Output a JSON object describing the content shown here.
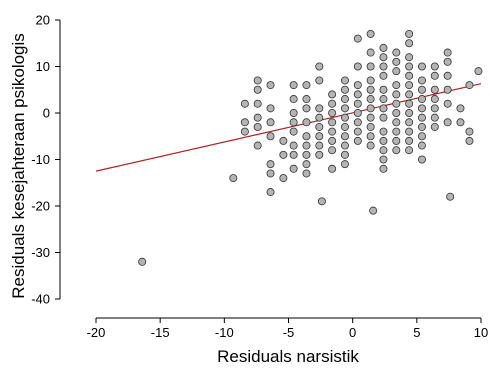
{
  "chart_data": {
    "type": "scatter",
    "xlabel": "Residuals narsistik",
    "ylabel": "Residuals kesejahteraan psikologis",
    "xlim": [
      -20,
      10
    ],
    "ylim": [
      -40,
      20
    ],
    "xticks": [
      -20,
      -15,
      -10,
      -5,
      0,
      5,
      10
    ],
    "yticks": [
      -40,
      -30,
      -20,
      -10,
      0,
      10,
      20
    ],
    "xtick_labels": [
      "-20",
      "-15",
      "-10",
      "-5",
      "0",
      "5",
      "10"
    ],
    "ytick_labels": [
      "-40",
      "-30",
      "-20",
      "-10",
      "0",
      "10",
      "20"
    ],
    "grid": false,
    "point_color": "#b4b4b4",
    "point_edge_color": "#333333",
    "line_color": "#b22222",
    "regression_line": {
      "x": [
        -20,
        10
      ],
      "y": [
        -12.5,
        6.3
      ]
    },
    "points": [
      [
        -16.4,
        -32
      ],
      [
        -9.3,
        -14
      ],
      [
        -6.4,
        -17
      ],
      [
        -2.4,
        -19
      ],
      [
        1.6,
        -21
      ],
      [
        7.6,
        -18
      ],
      [
        -8.4,
        2
      ],
      [
        -8.4,
        -2
      ],
      [
        -8.4,
        -4
      ],
      [
        -7.4,
        7
      ],
      [
        -7.4,
        5
      ],
      [
        -7.4,
        2
      ],
      [
        -7.4,
        -1
      ],
      [
        -7.4,
        -3
      ],
      [
        -7.4,
        -7
      ],
      [
        -6.4,
        6
      ],
      [
        -6.4,
        1
      ],
      [
        -6.4,
        -2
      ],
      [
        -6.4,
        -5
      ],
      [
        -6.4,
        -11
      ],
      [
        -6.4,
        -13
      ],
      [
        -5.4,
        -6
      ],
      [
        -5.4,
        -9
      ],
      [
        -5.4,
        -14
      ],
      [
        -4.6,
        6
      ],
      [
        -4.6,
        3
      ],
      [
        -4.6,
        0
      ],
      [
        -4.6,
        -2
      ],
      [
        -4.6,
        -4
      ],
      [
        -4.6,
        -7
      ],
      [
        -4.6,
        -9
      ],
      [
        -4.6,
        -12
      ],
      [
        -3.6,
        6
      ],
      [
        -3.6,
        3
      ],
      [
        -3.6,
        1
      ],
      [
        -3.6,
        -2
      ],
      [
        -3.6,
        -5
      ],
      [
        -3.6,
        -7
      ],
      [
        -3.6,
        -9
      ],
      [
        -3.6,
        -11
      ],
      [
        -3.6,
        -13
      ],
      [
        -2.6,
        10
      ],
      [
        -2.6,
        7
      ],
      [
        -2.6,
        1
      ],
      [
        -2.6,
        -1
      ],
      [
        -2.6,
        -3
      ],
      [
        -2.6,
        -5
      ],
      [
        -2.6,
        -7
      ],
      [
        -2.6,
        -9
      ],
      [
        -1.6,
        4
      ],
      [
        -1.6,
        2
      ],
      [
        -1.6,
        0
      ],
      [
        -1.6,
        -2
      ],
      [
        -1.6,
        -4
      ],
      [
        -1.6,
        -6
      ],
      [
        -1.6,
        -8
      ],
      [
        -1.6,
        -12
      ],
      [
        -0.6,
        7
      ],
      [
        -0.6,
        5
      ],
      [
        -0.6,
        3
      ],
      [
        -0.6,
        1
      ],
      [
        -0.6,
        -1
      ],
      [
        -0.6,
        -3
      ],
      [
        -0.6,
        -5
      ],
      [
        -0.6,
        -7
      ],
      [
        -0.6,
        -9
      ],
      [
        -0.6,
        -11
      ],
      [
        0.4,
        16
      ],
      [
        0.4,
        10
      ],
      [
        0.4,
        6
      ],
      [
        0.4,
        4
      ],
      [
        0.4,
        2
      ],
      [
        0.4,
        0
      ],
      [
        0.4,
        -2
      ],
      [
        0.4,
        -4
      ],
      [
        0.4,
        -6
      ],
      [
        1.4,
        17
      ],
      [
        1.4,
        13
      ],
      [
        1.4,
        10
      ],
      [
        1.4,
        7
      ],
      [
        1.4,
        5
      ],
      [
        1.4,
        3
      ],
      [
        1.4,
        1
      ],
      [
        1.4,
        -1
      ],
      [
        1.4,
        -3
      ],
      [
        1.4,
        -5
      ],
      [
        1.4,
        -7
      ],
      [
        2.4,
        14
      ],
      [
        2.4,
        12
      ],
      [
        2.4,
        10
      ],
      [
        2.4,
        8
      ],
      [
        2.4,
        5
      ],
      [
        2.4,
        3
      ],
      [
        2.4,
        1
      ],
      [
        2.4,
        -1
      ],
      [
        2.4,
        -4
      ],
      [
        2.4,
        -6
      ],
      [
        2.4,
        -8
      ],
      [
        2.4,
        -10
      ],
      [
        2.4,
        -12
      ],
      [
        3.4,
        13
      ],
      [
        3.4,
        11
      ],
      [
        3.4,
        9
      ],
      [
        3.4,
        6
      ],
      [
        3.4,
        4
      ],
      [
        3.4,
        2
      ],
      [
        3.4,
        0
      ],
      [
        3.4,
        -2
      ],
      [
        3.4,
        -4
      ],
      [
        3.4,
        -6
      ],
      [
        3.4,
        -8
      ],
      [
        4.4,
        17
      ],
      [
        4.4,
        15
      ],
      [
        4.4,
        12
      ],
      [
        4.4,
        10
      ],
      [
        4.4,
        8
      ],
      [
        4.4,
        6
      ],
      [
        4.4,
        4
      ],
      [
        4.4,
        2
      ],
      [
        4.4,
        0
      ],
      [
        4.4,
        -2
      ],
      [
        4.4,
        -4
      ],
      [
        4.4,
        -6
      ],
      [
        4.4,
        -8
      ],
      [
        5.4,
        10
      ],
      [
        5.4,
        7
      ],
      [
        5.4,
        5
      ],
      [
        5.4,
        3
      ],
      [
        5.4,
        1
      ],
      [
        5.4,
        -1
      ],
      [
        5.4,
        -3
      ],
      [
        5.4,
        -5
      ],
      [
        5.4,
        -7
      ],
      [
        5.4,
        -10
      ],
      [
        6.4,
        10
      ],
      [
        6.4,
        8
      ],
      [
        6.4,
        5
      ],
      [
        6.4,
        3
      ],
      [
        6.4,
        1
      ],
      [
        6.4,
        -1
      ],
      [
        6.4,
        -3
      ],
      [
        7.4,
        13
      ],
      [
        7.4,
        11
      ],
      [
        7.4,
        8
      ],
      [
        7.4,
        5
      ],
      [
        7.4,
        2
      ],
      [
        7.4,
        -2
      ],
      [
        8.4,
        1
      ],
      [
        8.4,
        -2
      ],
      [
        9.1,
        6
      ],
      [
        9.1,
        -4
      ],
      [
        9.1,
        -6
      ],
      [
        9.8,
        9
      ]
    ]
  }
}
